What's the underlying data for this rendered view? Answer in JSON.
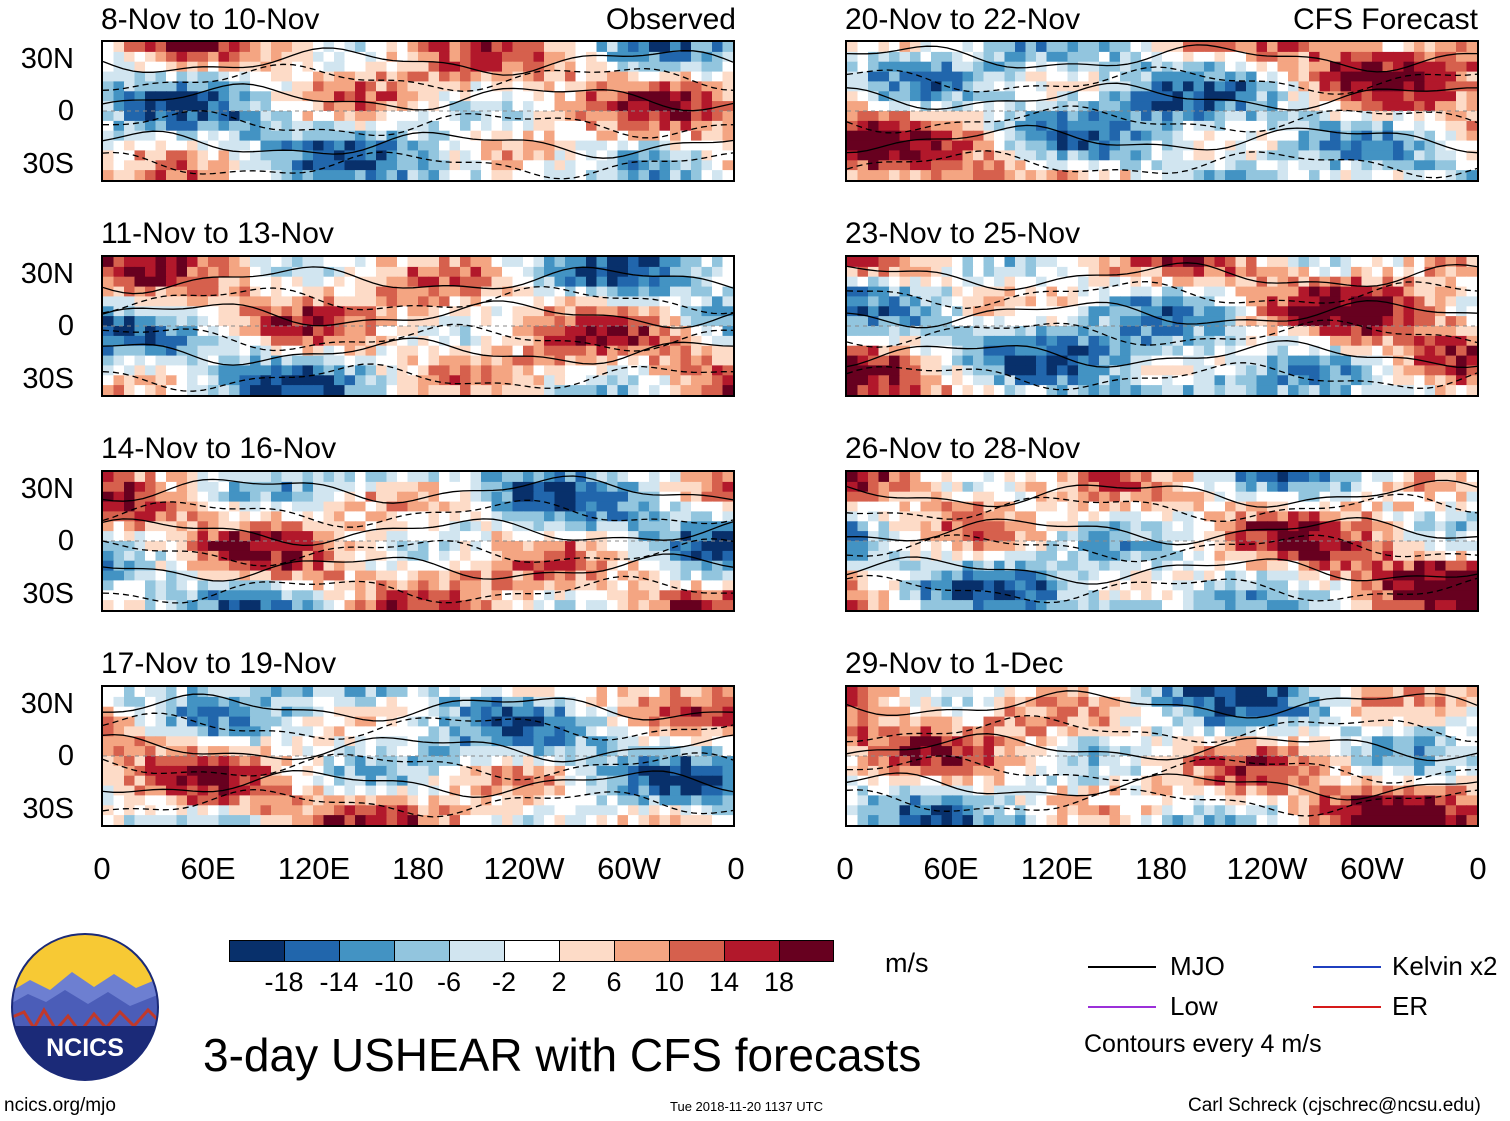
{
  "chart_data": {
    "type": "heatmap",
    "title": "3-day USHEAR with CFS forecasts",
    "units": "m/s",
    "observed_label": "Observed",
    "forecast_label": "CFS Forecast",
    "y_ticks": [
      "30N",
      "0",
      "30S"
    ],
    "x_ticks": [
      "0",
      "60E",
      "120E",
      "180",
      "120W",
      "60W",
      "0"
    ],
    "panels": [
      {
        "title": "8-Nov to 10-Nov",
        "kind": "Observed"
      },
      {
        "title": "11-Nov to 13-Nov",
        "kind": "Observed"
      },
      {
        "title": "14-Nov to 16-Nov",
        "kind": "Observed"
      },
      {
        "title": "17-Nov to 19-Nov",
        "kind": "Observed"
      },
      {
        "title": "20-Nov to 22-Nov",
        "kind": "CFS Forecast"
      },
      {
        "title": "23-Nov to 25-Nov",
        "kind": "CFS Forecast"
      },
      {
        "title": "26-Nov to 28-Nov",
        "kind": "CFS Forecast"
      },
      {
        "title": "29-Nov to 1-Dec",
        "kind": "CFS Forecast"
      }
    ],
    "colorbar": {
      "ticks": [
        "-18",
        "-14",
        "-10",
        "-6",
        "-2",
        "2",
        "6",
        "10",
        "14",
        "18"
      ],
      "colors": [
        "#08306b",
        "#2166ac",
        "#4393c3",
        "#92c5de",
        "#d1e5f0",
        "#ffffff",
        "#fddbc7",
        "#f4a582",
        "#d6604d",
        "#b2182b",
        "#67001f"
      ]
    },
    "legend": [
      {
        "label": "MJO",
        "color": "#000000"
      },
      {
        "label": "Kelvin x2",
        "color": "#1f3fbf"
      },
      {
        "label": "Low",
        "color": "#9b30d9"
      },
      {
        "label": "ER",
        "color": "#d61a1a"
      }
    ],
    "contour_note": "Contours every 4 m/s"
  },
  "logo": {
    "text": "NCICS"
  },
  "footer": {
    "url": "ncics.org/mjo",
    "timestamp": "Tue 2018-11-20 1137 UTC",
    "author": "Carl Schreck (cjschrec@ncsu.edu)"
  }
}
